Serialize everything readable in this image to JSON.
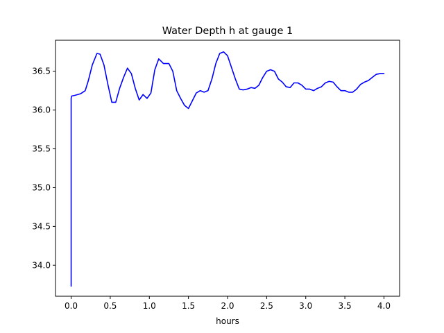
{
  "chart_data": {
    "type": "line",
    "title": "Water Depth h at gauge 1",
    "xlabel": "hours",
    "ylabel": "",
    "xlim": [
      -0.2,
      4.2
    ],
    "ylim": [
      33.6,
      36.9
    ],
    "xticks": [
      0.0,
      0.5,
      1.0,
      1.5,
      2.0,
      2.5,
      3.0,
      3.5,
      4.0
    ],
    "xtick_labels": [
      "0.0",
      "0.5",
      "1.0",
      "1.5",
      "2.0",
      "2.5",
      "3.0",
      "3.5",
      "4.0"
    ],
    "yticks": [
      34.0,
      34.5,
      35.0,
      35.5,
      36.0,
      36.5
    ],
    "ytick_labels": [
      "34.0",
      "34.5",
      "35.0",
      "35.5",
      "36.0",
      "36.5"
    ],
    "grid": false,
    "series": [
      {
        "color": "#0000ff",
        "x": [
          0.0,
          0.0,
          0.005,
          0.05,
          0.12,
          0.18,
          0.22,
          0.27,
          0.33,
          0.37,
          0.42,
          0.47,
          0.52,
          0.57,
          0.62,
          0.67,
          0.72,
          0.77,
          0.82,
          0.87,
          0.92,
          0.97,
          1.02,
          1.07,
          1.12,
          1.18,
          1.25,
          1.3,
          1.35,
          1.4,
          1.45,
          1.5,
          1.55,
          1.6,
          1.65,
          1.7,
          1.75,
          1.8,
          1.85,
          1.9,
          1.95,
          2.0,
          2.05,
          2.1,
          2.15,
          2.2,
          2.25,
          2.3,
          2.35,
          2.4,
          2.45,
          2.5,
          2.55,
          2.6,
          2.65,
          2.7,
          2.75,
          2.8,
          2.85,
          2.9,
          2.95,
          3.0,
          3.05,
          3.1,
          3.15,
          3.2,
          3.25,
          3.3,
          3.35,
          3.4,
          3.45,
          3.5,
          3.55,
          3.6,
          3.65,
          3.7,
          3.75,
          3.8,
          3.85,
          3.9,
          3.95,
          4.0
        ],
        "y": [
          33.73,
          36.15,
          36.18,
          36.19,
          36.21,
          36.25,
          36.38,
          36.58,
          36.73,
          36.72,
          36.58,
          36.33,
          36.1,
          36.1,
          36.28,
          36.42,
          36.54,
          36.47,
          36.28,
          36.13,
          36.2,
          36.15,
          36.22,
          36.52,
          36.66,
          36.6,
          36.6,
          36.5,
          36.25,
          36.15,
          36.06,
          36.02,
          36.12,
          36.22,
          36.25,
          36.23,
          36.25,
          36.4,
          36.6,
          36.73,
          36.75,
          36.7,
          36.55,
          36.4,
          36.27,
          36.26,
          36.27,
          36.29,
          36.28,
          36.32,
          36.42,
          36.5,
          36.52,
          36.5,
          36.4,
          36.36,
          36.3,
          36.29,
          36.35,
          36.35,
          36.32,
          36.27,
          36.27,
          36.25,
          36.28,
          36.3,
          36.35,
          36.37,
          36.36,
          36.3,
          36.25,
          36.25,
          36.23,
          36.23,
          36.27,
          36.33,
          36.36,
          36.38,
          36.42,
          36.46,
          36.47,
          36.47
        ]
      }
    ]
  }
}
